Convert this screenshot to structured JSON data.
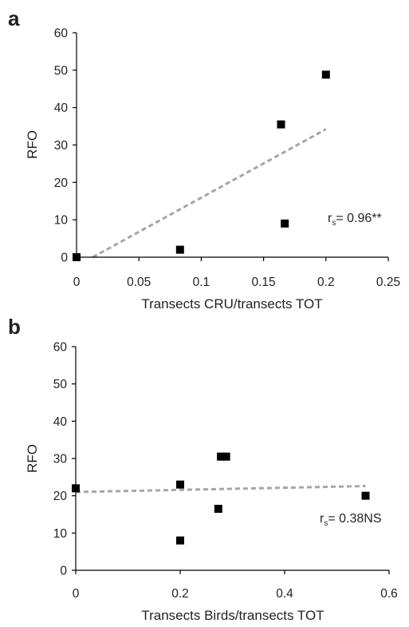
{
  "chart_data": [
    {
      "panel": "a",
      "type": "scatter",
      "xlabel": "Transects CRU/transects TOT",
      "ylabel": "RFO",
      "xlim": [
        0,
        0.25
      ],
      "ylim": [
        0,
        60
      ],
      "xticks": [
        "0",
        "0.05",
        "0.1",
        "0.15",
        "0.2",
        "0.25"
      ],
      "yticks": [
        "0",
        "10",
        "20",
        "30",
        "40",
        "50",
        "60"
      ],
      "points": [
        {
          "x": 0,
          "y": 0
        },
        {
          "x": 0.083,
          "y": 2
        },
        {
          "x": 0.164,
          "y": 35.5
        },
        {
          "x": 0.167,
          "y": 9
        },
        {
          "x": 0.2,
          "y": 48.8
        }
      ],
      "trendline": {
        "style": "dashed",
        "color": "#a6a6a6",
        "x": [
          0.013,
          0.2
        ],
        "y": [
          0,
          34.2
        ]
      },
      "stat_main": "r",
      "stat_sub": "s",
      "stat_value": "= 0.96**",
      "grid": false
    },
    {
      "panel": "b",
      "type": "scatter",
      "xlabel": "Transects Birds/transects TOT",
      "ylabel": "RFO",
      "xlim": [
        0,
        0.6
      ],
      "ylim": [
        0,
        60
      ],
      "xticks": [
        "0",
        "0.2",
        "0.4",
        "0.6"
      ],
      "yticks": [
        "0",
        "10",
        "20",
        "30",
        "40",
        "50",
        "60"
      ],
      "points": [
        {
          "x": 0,
          "y": 22
        },
        {
          "x": 0.2,
          "y": 23
        },
        {
          "x": 0.2,
          "y": 8
        },
        {
          "x": 0.273,
          "y": 16.5
        },
        {
          "x": 0.278,
          "y": 30.5
        },
        {
          "x": 0.288,
          "y": 30.5
        },
        {
          "x": 0.555,
          "y": 20
        }
      ],
      "trendline": {
        "style": "dashed",
        "color": "#a6a6a6",
        "x": [
          0,
          0.555
        ],
        "y": [
          21,
          22.6
        ]
      },
      "stat_main": "r",
      "stat_sub": "s",
      "stat_value": "= 0.38NS",
      "grid": false
    }
  ]
}
